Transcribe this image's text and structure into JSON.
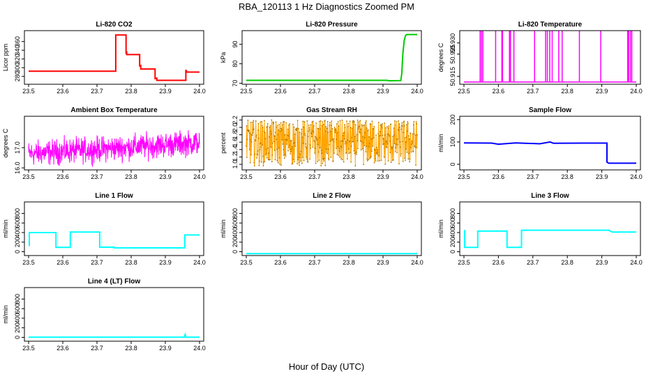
{
  "figure": {
    "title": "RBA_120113  1 Hz Diagnostics Zoomed PM",
    "xlabel": "Hour of Day (UTC)"
  },
  "colors": {
    "co2": "#ff0000",
    "pressure": "#00cc00",
    "temperature": "#ff00ff",
    "box_temp": "#ff00ff",
    "rh": "#ffa500",
    "rh_points": "#b07800",
    "sample_flow": "#0000ff",
    "line_flow": "#00ffff"
  },
  "chart_data": [
    {
      "id": "co2",
      "type": "line",
      "title": "Li-820 CO2",
      "ylabel": "Licor ppm",
      "xlim": [
        23.5,
        24.0
      ],
      "xticks": [
        "23.5",
        "23.6",
        "23.7",
        "23.8",
        "23.9",
        "24.0"
      ],
      "ylim": [
        262,
        385
      ],
      "yticks": [
        "280",
        "300",
        "320",
        "340",
        "360"
      ],
      "color_key": "co2",
      "series": [
        {
          "name": "CO2",
          "x": [
            23.5,
            23.755,
            23.755,
            23.785,
            23.785,
            23.787,
            23.787,
            23.825,
            23.825,
            23.828,
            23.828,
            23.87,
            23.87,
            23.875,
            23.875,
            23.96,
            23.96,
            23.962,
            23.962,
            24.0
          ],
          "y": [
            292,
            292,
            375,
            375,
            334,
            335,
            330,
            330,
            304,
            305,
            297,
            297,
            275,
            276,
            271,
            271,
            295,
            292,
            290,
            290
          ]
        }
      ]
    },
    {
      "id": "pressure",
      "type": "line",
      "title": "Li-820 Pressure",
      "ylabel": "kPa",
      "xlim": [
        23.5,
        24.0
      ],
      "xticks": [
        "23.5",
        "23.6",
        "23.7",
        "23.8",
        "23.9",
        "24.0"
      ],
      "ylim": [
        69.5,
        97
      ],
      "yticks": [
        "70",
        "80",
        "90"
      ],
      "color_key": "pressure",
      "series": [
        {
          "name": "Pressure",
          "x": [
            23.5,
            23.91,
            23.92,
            23.952,
            23.955,
            23.958,
            23.962,
            23.966,
            23.969,
            23.972,
            24.0
          ],
          "y": [
            71.5,
            71.5,
            71.3,
            71.4,
            75,
            85,
            92,
            94.5,
            95,
            95,
            95
          ]
        }
      ]
    },
    {
      "id": "li_temp",
      "type": "line",
      "title": "Li-820 Temperature",
      "ylabel": "degrees C",
      "xlim": [
        23.5,
        24.0
      ],
      "xticks": [
        "23.5",
        "23.6",
        "23.7",
        "23.8",
        "23.9",
        "24.0"
      ],
      "ylim": [
        50.9115,
        50.9355
      ],
      "yticks": [
        "50.915",
        "50.925",
        "50.930"
      ],
      "color_key": "temperature",
      "baseline": 50.9125,
      "spike": 50.9355,
      "spikes_x": [
        23.547,
        23.551,
        23.555,
        23.592,
        23.61,
        23.612,
        23.632,
        23.635,
        23.645,
        23.705,
        23.737,
        23.742,
        23.749,
        23.756,
        23.775,
        23.785,
        23.835,
        23.897,
        23.975,
        23.978,
        23.983,
        23.987
      ]
    },
    {
      "id": "box_temp",
      "type": "noisy",
      "title": "Ambient Box Temperature",
      "ylabel": "degrees C",
      "xlim": [
        23.5,
        24.0
      ],
      "xticks": [
        "23.5",
        "23.6",
        "23.7",
        "23.8",
        "23.9",
        "24.0"
      ],
      "ylim": [
        15.9,
        18.55
      ],
      "yticks": [
        "16.0",
        "17.0"
      ],
      "color_key": "box_temp",
      "mean_start": 16.7,
      "mean_end": 17.25,
      "amplitude": 0.9
    },
    {
      "id": "rh",
      "type": "noisy",
      "title": "Gas Stream RH",
      "ylabel": "percent",
      "xlim": [
        23.5,
        24.0
      ],
      "xticks": [
        "23.5",
        "23.6",
        "23.7",
        "23.8",
        "23.9",
        "24.0"
      ],
      "ylim": [
        0.85,
        2.3
      ],
      "yticks": [
        "1.0",
        "1.2",
        "1.4",
        "1.6",
        "1.8",
        "2.0",
        "2.2"
      ],
      "color_key": "rh",
      "low": 0.95,
      "high": 2.2
    },
    {
      "id": "sample_flow",
      "type": "line",
      "title": "Sample Flow",
      "ylabel": "ml/min",
      "xlim": [
        23.5,
        24.0
      ],
      "xticks": [
        "23.5",
        "23.6",
        "23.7",
        "23.8",
        "23.9",
        "24.0"
      ],
      "ylim": [
        -25,
        215
      ],
      "yticks": [
        "0",
        "100",
        "200"
      ],
      "color_key": "sample_flow",
      "series": [
        {
          "name": "Sample",
          "x": [
            23.5,
            23.58,
            23.6,
            23.65,
            23.72,
            23.75,
            23.76,
            23.85,
            23.915,
            23.915,
            23.92,
            24.0
          ],
          "y": [
            96,
            95,
            90,
            96,
            92,
            100,
            94,
            95,
            95,
            10,
            5,
            5
          ]
        }
      ]
    },
    {
      "id": "line1_flow",
      "type": "line",
      "title": "Line 1 Flow",
      "ylabel": "ml/min",
      "xlim": [
        23.5,
        24.0
      ],
      "xticks": [
        "23.5",
        "23.6",
        "23.7",
        "23.8",
        "23.9",
        "24.0"
      ],
      "ylim": [
        -80,
        1040
      ],
      "yticks": [
        "0",
        "200",
        "400",
        "600",
        "800"
      ],
      "color_key": "line_flow",
      "series": [
        {
          "name": "Line1",
          "x": [
            23.5,
            23.502,
            23.502,
            23.58,
            23.58,
            23.622,
            23.622,
            23.708,
            23.708,
            23.75,
            23.75,
            23.957,
            23.957,
            24.0
          ],
          "y": [
            130,
            130,
            400,
            400,
            90,
            90,
            410,
            410,
            95,
            95,
            80,
            80,
            350,
            350
          ]
        }
      ]
    },
    {
      "id": "line2_flow",
      "type": "line",
      "title": "Line 2 Flow",
      "ylabel": "ml/min",
      "xlim": [
        23.5,
        24.0
      ],
      "xticks": [
        "23.5",
        "23.6",
        "23.7",
        "23.8",
        "23.9",
        "24.0"
      ],
      "ylim": [
        -80,
        1040
      ],
      "yticks": [
        "0",
        "200",
        "400",
        "600",
        "800"
      ],
      "color_key": "line_flow",
      "series": [
        {
          "name": "Line2",
          "x": [
            23.5,
            24.0
          ],
          "y": [
            -40,
            -40
          ]
        }
      ]
    },
    {
      "id": "line3_flow",
      "type": "line",
      "title": "Line 3 Flow",
      "ylabel": "ml/min",
      "xlim": [
        23.5,
        24.0
      ],
      "xticks": [
        "23.5",
        "23.6",
        "23.7",
        "23.8",
        "23.9",
        "24.0"
      ],
      "ylim": [
        -80,
        1040
      ],
      "yticks": [
        "0",
        "200",
        "400",
        "600",
        "800"
      ],
      "color_key": "line_flow",
      "series": [
        {
          "name": "Line3",
          "x": [
            23.5,
            23.502,
            23.502,
            23.54,
            23.54,
            23.625,
            23.625,
            23.667,
            23.667,
            23.92,
            23.93,
            24.0
          ],
          "y": [
            440,
            440,
            90,
            90,
            430,
            430,
            90,
            90,
            450,
            450,
            410,
            410
          ]
        }
      ]
    },
    {
      "id": "line4_flow",
      "type": "line",
      "title": "Line 4 (LT) Flow",
      "ylabel": "ml/min",
      "xlim": [
        23.5,
        24.0
      ],
      "xticks": [
        "23.5",
        "23.6",
        "23.7",
        "23.8",
        "23.9",
        "24.0"
      ],
      "ylim": [
        -80,
        1040
      ],
      "yticks": [
        "0",
        "200",
        "400",
        "600",
        "800"
      ],
      "color_key": "line_flow",
      "series": [
        {
          "name": "Line4",
          "x": [
            23.5,
            23.955,
            23.958,
            23.96,
            23.962,
            24.0
          ],
          "y": [
            5,
            5,
            60,
            5,
            5,
            5
          ]
        }
      ]
    }
  ]
}
